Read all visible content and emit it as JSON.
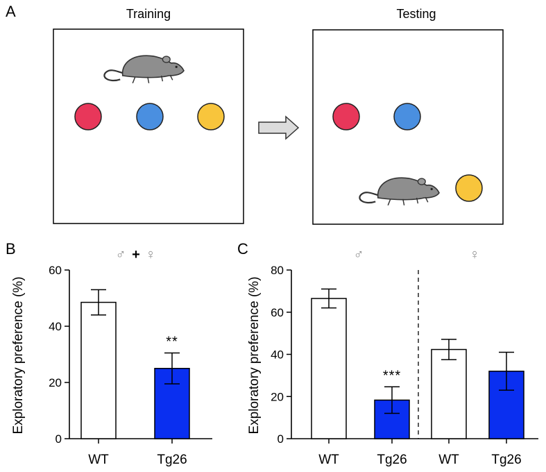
{
  "panel_a": {
    "letter": "A",
    "training_title": "Training",
    "testing_title": "Testing",
    "colors": {
      "red": "#e8375a",
      "blue": "#4a8fe0",
      "yellow": "#f8c53c",
      "mouse": "#8e8e8e",
      "arrow": "#dcdcdc"
    }
  },
  "chart_data": [
    {
      "type": "bar",
      "panel": "B",
      "group_label": {
        "male": "♂",
        "plus": "+",
        "female": "♀"
      },
      "categories": [
        "WT",
        "Tg26"
      ],
      "values": [
        48.5,
        25.0
      ],
      "errors": [
        4.5,
        5.5
      ],
      "colors": [
        "#ffffff",
        "#0a2ff0"
      ],
      "significance": [
        "",
        "**"
      ],
      "ylabel": "Exploratory preference (%)",
      "ylim": [
        0,
        60
      ],
      "yticks": [
        "0",
        "20",
        "40",
        "60"
      ]
    },
    {
      "type": "bar",
      "panel": "C",
      "group_labels": [
        "♂",
        "♀"
      ],
      "categories": [
        "WT",
        "Tg26",
        "WT",
        "Tg26"
      ],
      "values": [
        66.5,
        18.3,
        42.3,
        32.0
      ],
      "errors": [
        4.5,
        6.3,
        4.8,
        9.0
      ],
      "colors": [
        "#ffffff",
        "#0a2ff0",
        "#ffffff",
        "#0a2ff0"
      ],
      "significance": [
        "",
        "***",
        "",
        ""
      ],
      "ylabel": "Exploratory preference (%)",
      "ylim": [
        0,
        80
      ],
      "yticks": [
        "0",
        "20",
        "40",
        "60",
        "80"
      ]
    }
  ]
}
